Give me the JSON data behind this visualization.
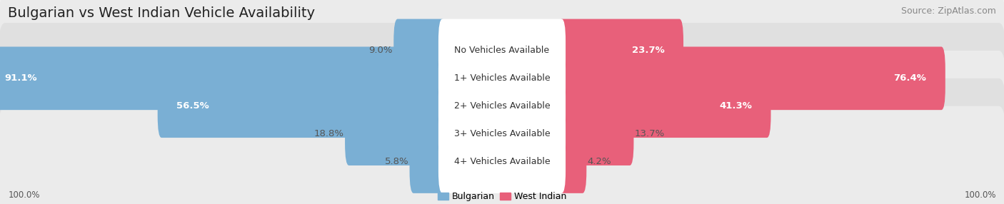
{
  "title": "Bulgarian vs West Indian Vehicle Availability",
  "source": "Source: ZipAtlas.com",
  "categories": [
    "No Vehicles Available",
    "1+ Vehicles Available",
    "2+ Vehicles Available",
    "3+ Vehicles Available",
    "4+ Vehicles Available"
  ],
  "bulgarian_values": [
    9.0,
    91.1,
    56.5,
    18.8,
    5.8
  ],
  "west_indian_values": [
    23.7,
    76.4,
    41.3,
    13.7,
    4.2
  ],
  "bulgarian_color": "#7aafd4",
  "west_indian_color": "#e8607a",
  "background_color": "#f2f2f2",
  "row_colors": [
    "#ebebeb",
    "#e0e0e0",
    "#ebebeb",
    "#e0e0e0",
    "#ebebeb"
  ],
  "center_label_bg": "#ffffff",
  "title_fontsize": 14,
  "source_fontsize": 9,
  "bar_label_fontsize": 9.5,
  "category_fontsize": 9,
  "legend_fontsize": 9,
  "axis_label_fontsize": 8.5,
  "max_value": 100.0,
  "figsize": [
    14.06,
    2.86
  ],
  "dpi": 100
}
